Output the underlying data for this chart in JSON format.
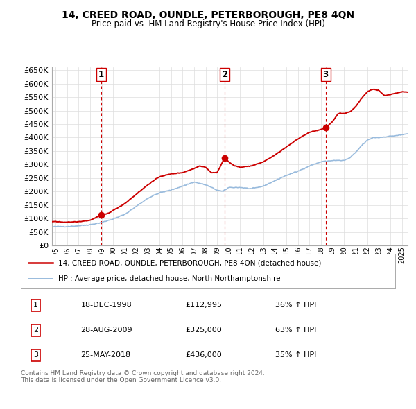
{
  "title": "14, CREED ROAD, OUNDLE, PETERBOROUGH, PE8 4QN",
  "subtitle": "Price paid vs. HM Land Registry's House Price Index (HPI)",
  "legend_line1": "14, CREED ROAD, OUNDLE, PETERBOROUGH, PE8 4QN (detached house)",
  "legend_line2": "HPI: Average price, detached house, North Northamptonshire",
  "copyright": "Contains HM Land Registry data © Crown copyright and database right 2024.\nThis data is licensed under the Open Government Licence v3.0.",
  "transactions": [
    {
      "num": 1,
      "date": "18-DEC-1998",
      "price": 112995,
      "hpi_pct": "36% ↑ HPI",
      "x": 1998.96
    },
    {
      "num": 2,
      "date": "28-AUG-2009",
      "price": 325000,
      "hpi_pct": "63% ↑ HPI",
      "x": 2009.65
    },
    {
      "num": 3,
      "date": "25-MAY-2018",
      "price": 436000,
      "hpi_pct": "35% ↑ HPI",
      "x": 2018.4
    }
  ],
  "price_color": "#cc0000",
  "hpi_color": "#99bbdd",
  "vline_color": "#cc0000",
  "grid_color": "#dddddd",
  "background_color": "#ffffff",
  "ylim": [
    0,
    660000
  ],
  "yticks": [
    0,
    50000,
    100000,
    150000,
    200000,
    250000,
    300000,
    350000,
    400000,
    450000,
    500000,
    550000,
    600000,
    650000
  ],
  "xlim_start": 1994.7,
  "xlim_end": 2025.5,
  "xticks": [
    1995,
    1996,
    1997,
    1998,
    1999,
    2000,
    2001,
    2002,
    2003,
    2004,
    2005,
    2006,
    2007,
    2008,
    2009,
    2010,
    2011,
    2012,
    2013,
    2014,
    2015,
    2016,
    2017,
    2018,
    2019,
    2020,
    2021,
    2022,
    2023,
    2024,
    2025
  ]
}
